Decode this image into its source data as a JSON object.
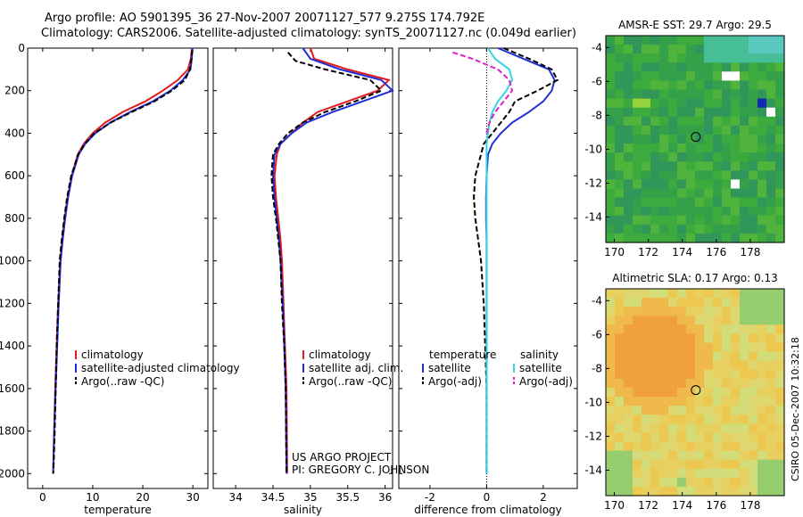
{
  "header": {
    "line1": "Argo profile: AO 5901395_36 27-Nov-2007 20071127_577 9.275S 174.792E",
    "line2": "Climatology: CARS2006. Satellite-adjusted climatology: synTS_20071127.nc (0.049d earlier)"
  },
  "project": {
    "line1": "US ARGO PROJECT",
    "line2": "PI: GREGORY C. JOHNSON"
  },
  "credit": "CSIRO 05-Dec-2007 10:32:18",
  "colors": {
    "climatology": "#e41a1c",
    "satellite": "#1f2fd6",
    "argo": "#000000",
    "sal_satellite": "#33d6e0",
    "sal_argo": "#e01fcc"
  },
  "chart_data": [
    {
      "type": "line",
      "name": "temperature-profile",
      "xlabel": "temperature",
      "ylabel": "",
      "xlim": [
        -3,
        33
      ],
      "ylim": [
        2070,
        0
      ],
      "xticks": [
        0,
        10,
        20,
        30
      ],
      "yticks": [
        0,
        200,
        400,
        600,
        800,
        1000,
        1200,
        1400,
        1600,
        1800,
        2000
      ],
      "series": [
        {
          "name": "climatology",
          "color": "#e41a1c",
          "dash": "",
          "x": [
            29.8,
            29.6,
            29.0,
            27.0,
            24.0,
            20.5,
            16.0,
            12.5,
            10.0,
            8.2,
            7.0,
            5.8,
            5.0,
            4.4,
            3.9,
            3.5,
            3.1,
            2.8,
            2.5,
            2.3,
            2.1
          ],
          "y": [
            0,
            50,
            100,
            150,
            200,
            250,
            300,
            350,
            400,
            450,
            500,
            600,
            700,
            800,
            900,
            1000,
            1200,
            1400,
            1600,
            1800,
            2000
          ]
        },
        {
          "name": "satellite-adjusted climatology",
          "color": "#1f2fd6",
          "dash": "",
          "x": [
            29.9,
            29.8,
            29.5,
            28.0,
            25.5,
            22.0,
            17.5,
            13.5,
            10.5,
            8.5,
            7.2,
            5.9,
            5.1,
            4.5,
            4.0,
            3.6,
            3.2,
            2.9,
            2.6,
            2.3,
            2.1
          ],
          "y": [
            0,
            50,
            100,
            150,
            200,
            250,
            300,
            350,
            400,
            450,
            500,
            600,
            700,
            800,
            900,
            1000,
            1200,
            1400,
            1600,
            1800,
            2000
          ]
        },
        {
          "name": "Argo(..raw -QC)",
          "color": "#000000",
          "dash": "6,3",
          "x": [
            29.9,
            29.7,
            29.4,
            28.4,
            25.8,
            22.3,
            17.8,
            13.6,
            10.3,
            8.4,
            7.1,
            5.7,
            4.9,
            4.3,
            3.8,
            3.4,
            3.1,
            2.8,
            2.6,
            2.4,
            2.2,
            2.1
          ],
          "y": [
            10,
            50,
            100,
            150,
            200,
            250,
            300,
            350,
            400,
            450,
            500,
            600,
            700,
            800,
            900,
            1000,
            1200,
            1400,
            1600,
            1800,
            1950,
            2000
          ]
        }
      ],
      "legend": [
        "climatology",
        "satellite-adjusted climatology",
        "Argo(..raw -QC)"
      ]
    },
    {
      "type": "line",
      "name": "salinity-profile",
      "xlabel": "salinity",
      "ylabel": "",
      "xlim": [
        33.7,
        36.1
      ],
      "ylim": [
        2070,
        0
      ],
      "xticks": [
        34,
        34.5,
        35,
        35.5,
        36
      ],
      "xticklabels": [
        "34",
        "34.5",
        "35",
        "35.5",
        "36"
      ],
      "series": [
        {
          "name": "climatology",
          "color": "#e41a1c",
          "dash": "",
          "x": [
            35.0,
            35.05,
            35.5,
            36.05,
            35.9,
            35.5,
            35.1,
            34.9,
            34.75,
            34.6,
            34.55,
            34.52,
            34.54,
            34.57,
            34.6,
            34.62,
            34.64,
            34.66,
            34.68,
            34.69
          ],
          "y": [
            0,
            50,
            100,
            150,
            200,
            250,
            300,
            350,
            400,
            450,
            500,
            600,
            700,
            800,
            900,
            1000,
            1200,
            1400,
            1600,
            2000
          ]
        },
        {
          "name": "satellite adj. clim.",
          "color": "#1f2fd6",
          "dash": "",
          "x": [
            34.9,
            35.0,
            35.4,
            35.95,
            36.1,
            35.7,
            35.3,
            34.95,
            34.75,
            34.6,
            34.52,
            34.5,
            34.52,
            34.55,
            34.58,
            34.6,
            34.63,
            34.65,
            34.67,
            34.68
          ],
          "y": [
            0,
            50,
            100,
            150,
            200,
            250,
            300,
            350,
            400,
            450,
            500,
            600,
            700,
            800,
            900,
            1000,
            1200,
            1400,
            1600,
            2000
          ]
        },
        {
          "name": "Argo(..raw -QC)",
          "color": "#000000",
          "dash": "6,3",
          "x": [
            34.7,
            34.8,
            35.2,
            35.8,
            35.95,
            35.6,
            35.2,
            34.9,
            34.7,
            34.58,
            34.5,
            34.48,
            34.5,
            34.54,
            34.57,
            34.6,
            34.62,
            34.65,
            34.67,
            34.68
          ],
          "y": [
            20,
            60,
            100,
            150,
            200,
            250,
            300,
            350,
            400,
            450,
            500,
            600,
            700,
            800,
            900,
            1000,
            1200,
            1400,
            1600,
            2000
          ]
        }
      ],
      "legend": [
        "climatology",
        "satellite adj. clim.",
        "Argo(..raw -QC)"
      ]
    },
    {
      "type": "line",
      "name": "difference-profile",
      "xlabel": "difference from climatology",
      "ylabel": "",
      "xlim": [
        -3.1,
        3.2
      ],
      "ylim": [
        2070,
        0
      ],
      "xticks": [
        -2,
        0,
        2
      ],
      "series": [
        {
          "name": "temperature satellite",
          "color": "#1f2fd6",
          "dash": "",
          "x": [
            0.4,
            1.3,
            2.2,
            2.4,
            2.3,
            2.0,
            1.5,
            0.9,
            0.5,
            0.2,
            0.05,
            0.0,
            -0.02,
            -0.02,
            0.0,
            0.0,
            0.0,
            0.0,
            0.0,
            0.0
          ],
          "y": [
            0,
            50,
            100,
            150,
            200,
            250,
            300,
            350,
            400,
            450,
            500,
            600,
            700,
            800,
            900,
            1000,
            1200,
            1400,
            1600,
            2000
          ]
        },
        {
          "name": "temperature Argo(-adj)",
          "color": "#000000",
          "dash": "6,3",
          "x": [
            0.6,
            1.5,
            2.3,
            2.5,
            1.8,
            1.0,
            0.8,
            0.5,
            0.2,
            -0.1,
            -0.2,
            -0.4,
            -0.45,
            -0.4,
            -0.3,
            -0.2,
            -0.1,
            -0.05,
            0.0,
            0.0
          ],
          "y": [
            0,
            50,
            100,
            150,
            200,
            250,
            300,
            350,
            400,
            450,
            500,
            600,
            700,
            800,
            900,
            1000,
            1200,
            1400,
            1600,
            2000
          ]
        },
        {
          "name": "salinity satellite",
          "color": "#33d6e0",
          "dash": "",
          "x": [
            0.05,
            0.3,
            0.8,
            0.9,
            0.7,
            0.4,
            0.2,
            0.1,
            0.05,
            0.0,
            0.0,
            0.0,
            0.0,
            0.0,
            0.0
          ],
          "y": [
            0,
            50,
            100,
            150,
            200,
            250,
            300,
            350,
            400,
            450,
            500,
            600,
            800,
            1200,
            2000
          ]
        },
        {
          "name": "salinity Argo(-adj)",
          "color": "#e01fcc",
          "dash": "6,3",
          "x": [
            -1.2,
            -0.5,
            0.4,
            0.8,
            0.9,
            0.6,
            0.3,
            0.1,
            0.0
          ],
          "y": [
            20,
            50,
            100,
            150,
            200,
            250,
            300,
            350,
            400
          ]
        }
      ],
      "legend_headers": [
        "temperature",
        "salinity"
      ],
      "legend": [
        "satellite",
        "Argo(-adj)",
        "satellite",
        "Argo(-adj)"
      ]
    },
    {
      "type": "heatmap",
      "name": "sst-map",
      "title": "AMSR-E SST: 29.7 Argo: 29.5",
      "xlim": [
        169.5,
        180
      ],
      "ylim": [
        -15.5,
        -3.3
      ],
      "xticks": [
        170,
        172,
        174,
        176,
        178
      ],
      "yticks": [
        -4,
        -6,
        -8,
        -10,
        -12,
        -14
      ],
      "marker": {
        "lon": 174.792,
        "lat": -9.275
      }
    },
    {
      "type": "heatmap",
      "name": "sla-map",
      "title": "Altimetric SLA: 0.17 Argo: 0.13",
      "xlim": [
        169.5,
        180
      ],
      "ylim": [
        -15.5,
        -3.3
      ],
      "xticks": [
        170,
        172,
        174,
        176,
        178
      ],
      "yticks": [
        -4,
        -6,
        -8,
        -10,
        -12,
        -14
      ],
      "marker": {
        "lon": 174.792,
        "lat": -9.275
      }
    }
  ]
}
